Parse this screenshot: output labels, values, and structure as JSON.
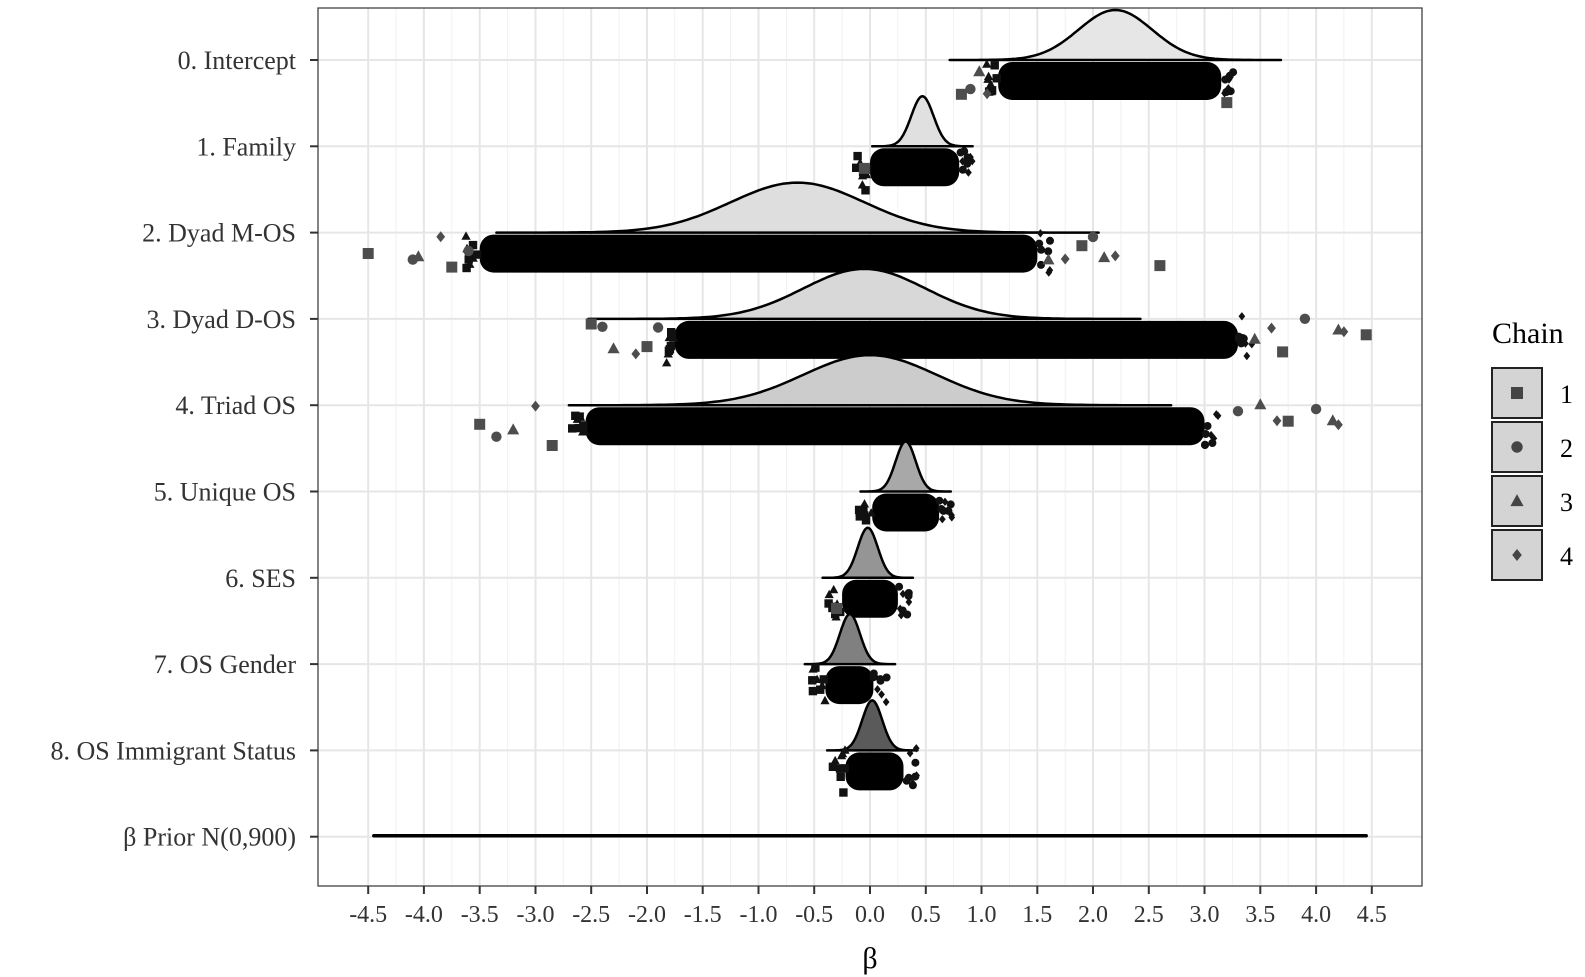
{
  "chart_data": {
    "type": "ridgeline",
    "title": "",
    "xlabel": "β",
    "ylabel": "",
    "xlim": [
      -4.95,
      4.95
    ],
    "x_ticks": [
      -4.5,
      -4.0,
      -3.5,
      -3.0,
      -2.5,
      -2.0,
      -1.5,
      -1.0,
      -0.5,
      0.0,
      0.5,
      1.0,
      1.5,
      2.0,
      2.5,
      3.0,
      3.5,
      4.0,
      4.5
    ],
    "x_tick_labels": [
      "-4.5",
      "-4.0",
      "-3.5",
      "-3.0",
      "-2.5",
      "-2.0",
      "-1.5",
      "-1.0",
      "-0.5",
      "0.0",
      "0.5",
      "1.0",
      "1.5",
      "2.0",
      "2.5",
      "3.0",
      "3.5",
      "4.0",
      "4.5"
    ],
    "grid": true,
    "legend": {
      "title": "Chain",
      "placement": "right",
      "entries": [
        {
          "label": "1",
          "shape": "square"
        },
        {
          "label": "2",
          "shape": "circle"
        },
        {
          "label": "3",
          "shape": "triangle"
        },
        {
          "label": "4",
          "shape": "diamond"
        }
      ]
    },
    "series": [
      {
        "name": "0. Intercept",
        "mode": 2.2,
        "sd": 0.33,
        "draw_min": 1.15,
        "draw_max": 3.15,
        "outliers": [
          0.82,
          0.9,
          0.98,
          1.05,
          3.2
        ],
        "fill": "#e6e6e6"
      },
      {
        "name": "1. Family",
        "mode": 0.47,
        "sd": 0.1,
        "draw_min": 0.0,
        "draw_max": 0.8,
        "outliers": [
          -0.05
        ],
        "fill": "#e0e0e0"
      },
      {
        "name": "2. Dyad M-OS",
        "mode": -0.65,
        "sd": 0.6,
        "draw_min": -3.5,
        "draw_max": 1.5,
        "outliers": [
          -4.5,
          -4.1,
          -4.05,
          -3.85,
          -3.75,
          -3.6,
          1.6,
          1.75,
          1.9,
          2.0,
          2.1,
          2.2,
          2.6
        ],
        "fill": "#dedede"
      },
      {
        "name": "3. Dyad D-OS",
        "mode": -0.05,
        "sd": 0.55,
        "draw_min": -1.75,
        "draw_max": 3.3,
        "outliers": [
          -2.5,
          -2.4,
          -2.3,
          -2.1,
          -2.0,
          -1.9,
          3.45,
          3.6,
          3.7,
          3.9,
          4.2,
          4.25,
          4.45
        ],
        "fill": "#d8d8d8"
      },
      {
        "name": "4. Triad OS",
        "mode": 0.0,
        "sd": 0.6,
        "draw_min": -2.55,
        "draw_max": 3.0,
        "outliers": [
          -3.5,
          -3.35,
          -3.2,
          -3.0,
          -2.85,
          3.3,
          3.5,
          3.65,
          3.75,
          4.0,
          4.15,
          4.2
        ],
        "fill": "#cccccc"
      },
      {
        "name": "5. Unique OS",
        "mode": 0.32,
        "sd": 0.09,
        "draw_min": 0.02,
        "draw_max": 0.62,
        "outliers": [],
        "fill": "#a8a8a8"
      },
      {
        "name": "6. SES",
        "mode": -0.02,
        "sd": 0.09,
        "draw_min": -0.25,
        "draw_max": 0.25,
        "outliers": [
          -0.3
        ],
        "fill": "#959595"
      },
      {
        "name": "7. OS Gender",
        "mode": -0.18,
        "sd": 0.09,
        "draw_min": -0.4,
        "draw_max": 0.03,
        "outliers": [],
        "fill": "#808080"
      },
      {
        "name": "8. OS Immigrant Status",
        "mode": 0.02,
        "sd": 0.09,
        "draw_min": -0.22,
        "draw_max": 0.3,
        "outliers": [],
        "fill": "#5a5a5a"
      },
      {
        "name": "β Prior N(0,900)",
        "mode": 0.0,
        "sd": 30,
        "draw_min": -4.45,
        "draw_max": 4.45,
        "outliers": [],
        "fill": "#d8d8d8"
      }
    ]
  }
}
